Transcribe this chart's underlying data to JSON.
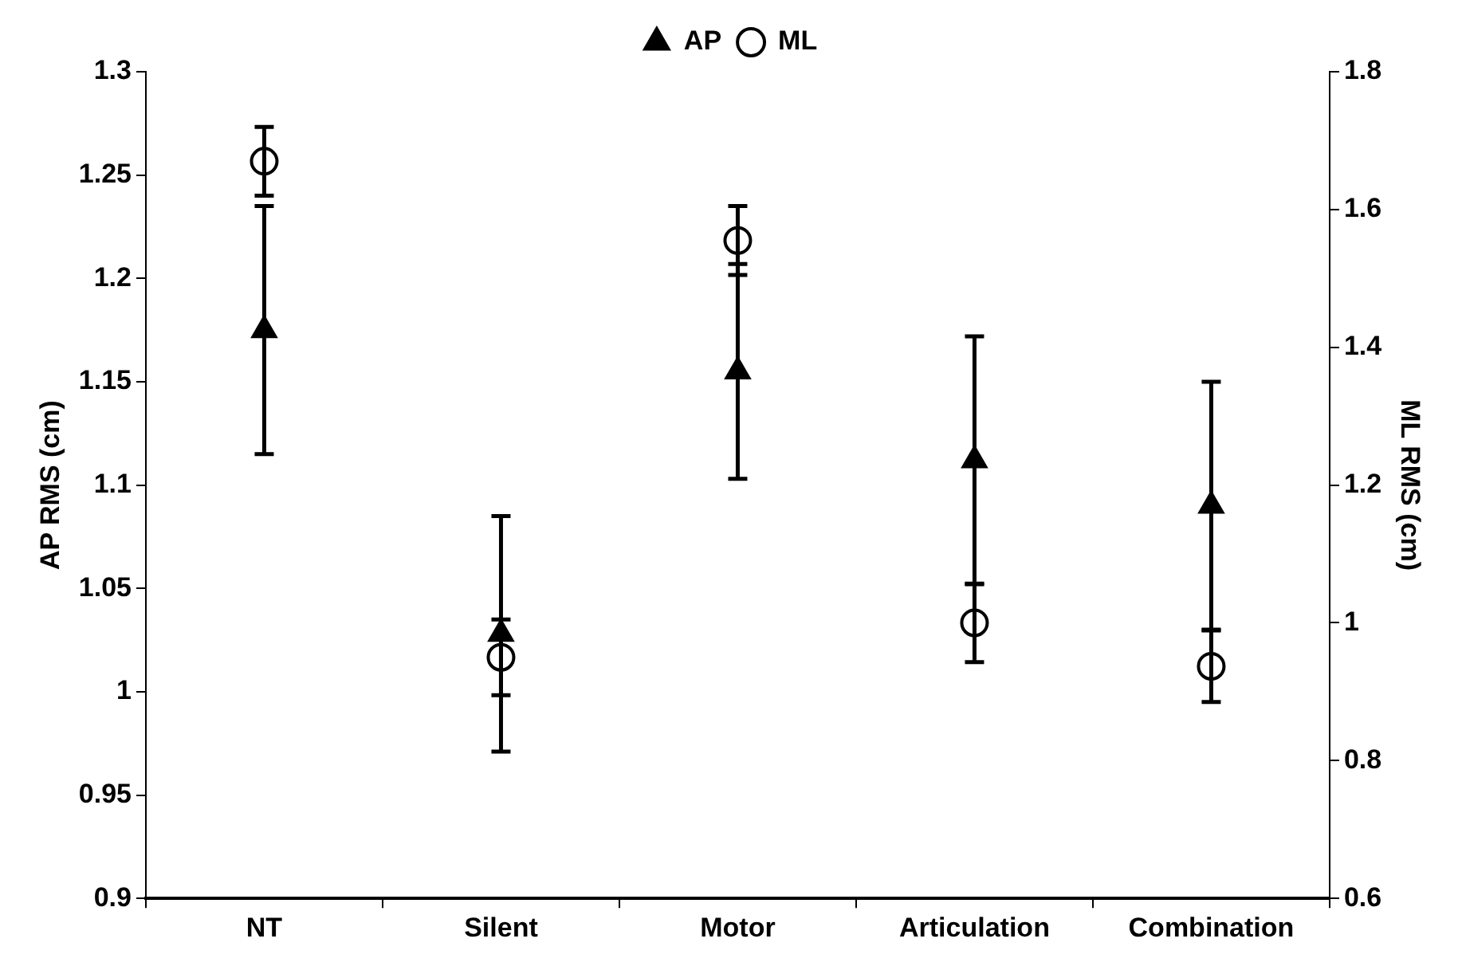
{
  "chart_data": {
    "type": "scatter",
    "ylabel": "AP RMS (cm)",
    "y2label": "ML RMS (cm)",
    "categories": [
      "NT",
      "Silent",
      "Motor",
      "Articulation",
      "Combination"
    ],
    "series": [
      {
        "name": "AP",
        "color": "#000000",
        "marker": "triangle",
        "values": [
          1.175,
          1.028,
          1.155,
          1.112,
          1.09
        ],
        "errors": [
          0.06,
          0.057,
          0.052,
          0.06,
          0.06
        ]
      },
      {
        "name": "ML",
        "color": "#000000",
        "marker": "circle",
        "axis": "y2",
        "values": [
          1.67,
          0.95,
          1.555,
          1.0,
          0.937
        ],
        "errors": [
          0.05,
          0.055,
          0.05,
          0.057,
          0.052
        ]
      }
    ],
    "ylim": [
      0.9,
      1.3
    ],
    "yticks": [
      0.9,
      0.95,
      1,
      1.05,
      1.1,
      1.15,
      1.2,
      1.25,
      1.3
    ],
    "y2lim": [
      0.6,
      1.8
    ],
    "y2ticks": [
      0.6,
      0.8,
      1,
      1.2,
      1.4,
      1.6,
      1.8
    ],
    "grid": false,
    "legend": "top"
  }
}
